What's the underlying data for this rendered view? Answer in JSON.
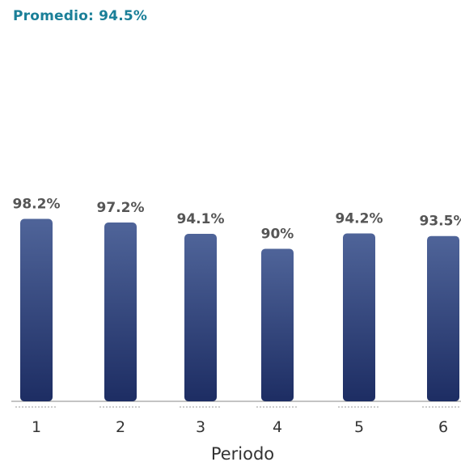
{
  "chart_data": {
    "type": "bar",
    "title": "Promedio: 94.5%",
    "xlabel": "Periodo",
    "ylabel": "",
    "categories": [
      "1",
      "2",
      "3",
      "4",
      "5",
      "6"
    ],
    "values": [
      98.2,
      97.2,
      94.1,
      90,
      94.2,
      93.5
    ],
    "value_labels": [
      "98.2%",
      "97.2%",
      "94.1%",
      "90%",
      "94.2%",
      "93.5%"
    ],
    "colors": {
      "bar_top": "#4f6499",
      "bar_bottom": "#1d2d63",
      "label": "#555555",
      "title": "#1a7f98",
      "axis": "#888888"
    }
  }
}
